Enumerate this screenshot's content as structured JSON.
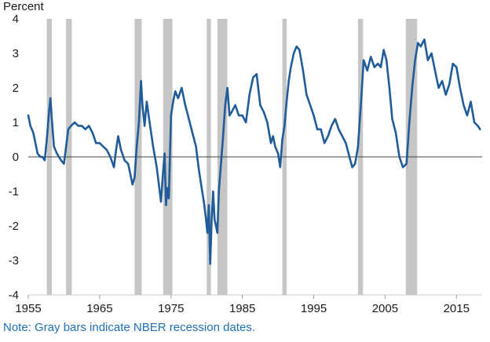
{
  "note": "Note: Gray bars indicate NBER recession dates.",
  "colors": {
    "line": "#1f5c99",
    "recession": "#c6c6c6",
    "zero_line": "#444444",
    "note": "#1f6fb4"
  },
  "chart_data": {
    "type": "line",
    "ylabel": "Percent",
    "xlim": [
      1955,
      2018.6
    ],
    "ylim": [
      -4,
      4
    ],
    "x_ticks": [
      1955,
      1965,
      1975,
      1985,
      1995,
      2005,
      2015
    ],
    "y_ticks": [
      -4,
      -3,
      -2,
      -1,
      0,
      1,
      2,
      3,
      4
    ],
    "recessions": [
      [
        1957.6,
        1958.3
      ],
      [
        1960.3,
        1961.1
      ],
      [
        1969.9,
        1970.9
      ],
      [
        1973.9,
        1975.2
      ],
      [
        1980.0,
        1980.6
      ],
      [
        1981.5,
        1982.9
      ],
      [
        1990.6,
        1991.2
      ],
      [
        2001.2,
        2001.9
      ],
      [
        2007.9,
        2009.5
      ]
    ],
    "series": [
      {
        "x": [
          1955.0,
          1955.3,
          1955.7,
          1956.0,
          1956.3,
          1956.7,
          1957.0,
          1957.3,
          1957.6,
          1957.9,
          1958.1,
          1958.3,
          1958.6,
          1959.0,
          1959.3,
          1959.6,
          1960.0,
          1960.3,
          1960.6,
          1961.0,
          1961.5,
          1962.0,
          1962.5,
          1963.0,
          1963.5,
          1964.0,
          1964.5,
          1965.0,
          1965.5,
          1966.0,
          1966.5,
          1967.0,
          1967.3,
          1967.6,
          1968.0,
          1968.5,
          1969.0,
          1969.3,
          1969.6,
          1969.9,
          1970.2,
          1970.5,
          1970.8,
          1971.0,
          1971.3,
          1971.6,
          1972.0,
          1972.5,
          1973.0,
          1973.3,
          1973.6,
          1973.9,
          1974.1,
          1974.3,
          1974.5,
          1974.7,
          1975.0,
          1975.3,
          1975.6,
          1976.0,
          1976.5,
          1977.0,
          1977.5,
          1978.0,
          1978.5,
          1978.8,
          1979.0,
          1979.3,
          1979.6,
          1979.9,
          1980.1,
          1980.3,
          1980.5,
          1980.7,
          1980.9,
          1981.1,
          1981.3,
          1981.5,
          1981.7,
          1982.0,
          1982.3,
          1982.6,
          1982.9,
          1983.2,
          1983.5,
          1984.0,
          1984.5,
          1985.0,
          1985.5,
          1986.0,
          1986.5,
          1987.0,
          1987.5,
          1988.0,
          1988.5,
          1989.0,
          1989.3,
          1989.6,
          1990.0,
          1990.3,
          1990.6,
          1990.9,
          1991.2,
          1991.5,
          1991.8,
          1992.2,
          1992.6,
          1993.0,
          1993.5,
          1994.0,
          1994.5,
          1995.0,
          1995.5,
          1996.0,
          1996.5,
          1997.0,
          1997.5,
          1998.0,
          1998.5,
          1999.0,
          1999.5,
          2000.0,
          2000.4,
          2000.8,
          2001.2,
          2001.6,
          2002.0,
          2002.5,
          2003.0,
          2003.5,
          2004.0,
          2004.4,
          2004.8,
          2005.2,
          2005.6,
          2006.0,
          2006.5,
          2007.0,
          2007.5,
          2008.0,
          2008.4,
          2008.8,
          2009.2,
          2009.6,
          2010.0,
          2010.5,
          2011.0,
          2011.5,
          2012.0,
          2012.5,
          2013.0,
          2013.5,
          2014.0,
          2014.5,
          2015.0,
          2015.5,
          2016.0,
          2016.5,
          2017.0,
          2017.5,
          2018.0,
          2018.3
        ],
        "y": [
          1.2,
          0.9,
          0.7,
          0.4,
          0.1,
          0.0,
          0.0,
          -0.1,
          0.5,
          1.3,
          1.7,
          1.1,
          0.3,
          0.1,
          0.0,
          -0.1,
          -0.2,
          0.3,
          0.8,
          0.9,
          1.0,
          0.9,
          0.9,
          0.8,
          0.9,
          0.7,
          0.4,
          0.4,
          0.3,
          0.2,
          0.0,
          -0.3,
          0.2,
          0.6,
          0.2,
          -0.1,
          -0.2,
          -0.5,
          -0.8,
          -0.6,
          0.3,
          1.0,
          2.2,
          1.5,
          0.9,
          1.6,
          1.0,
          0.3,
          -0.3,
          -0.8,
          -1.3,
          -0.4,
          0.1,
          -1.4,
          -0.9,
          -1.2,
          1.2,
          1.6,
          1.9,
          1.7,
          2.0,
          1.5,
          1.1,
          0.7,
          0.3,
          -0.2,
          -0.5,
          -0.9,
          -1.3,
          -1.8,
          -2.2,
          -1.4,
          -3.1,
          -1.8,
          -1.0,
          -1.8,
          -2.0,
          -2.2,
          -1.0,
          -0.2,
          0.6,
          1.5,
          2.0,
          1.2,
          1.3,
          1.5,
          1.2,
          1.2,
          1.0,
          1.8,
          2.3,
          2.4,
          1.5,
          1.3,
          1.0,
          0.4,
          0.6,
          0.3,
          0.1,
          -0.3,
          0.5,
          0.9,
          1.6,
          2.2,
          2.6,
          3.0,
          3.2,
          3.1,
          2.5,
          1.8,
          1.5,
          1.2,
          0.8,
          0.8,
          0.4,
          0.6,
          0.9,
          1.1,
          0.8,
          0.6,
          0.4,
          0.0,
          -0.3,
          -0.2,
          0.3,
          1.5,
          2.8,
          2.5,
          2.9,
          2.6,
          2.7,
          2.6,
          3.1,
          2.8,
          2.0,
          1.1,
          0.7,
          0.0,
          -0.3,
          -0.2,
          1.0,
          2.0,
          2.8,
          3.3,
          3.2,
          3.4,
          2.8,
          3.0,
          2.5,
          2.0,
          2.2,
          1.8,
          2.1,
          2.7,
          2.6,
          2.0,
          1.5,
          1.2,
          1.6,
          1.0,
          0.9,
          0.8
        ]
      }
    ]
  }
}
